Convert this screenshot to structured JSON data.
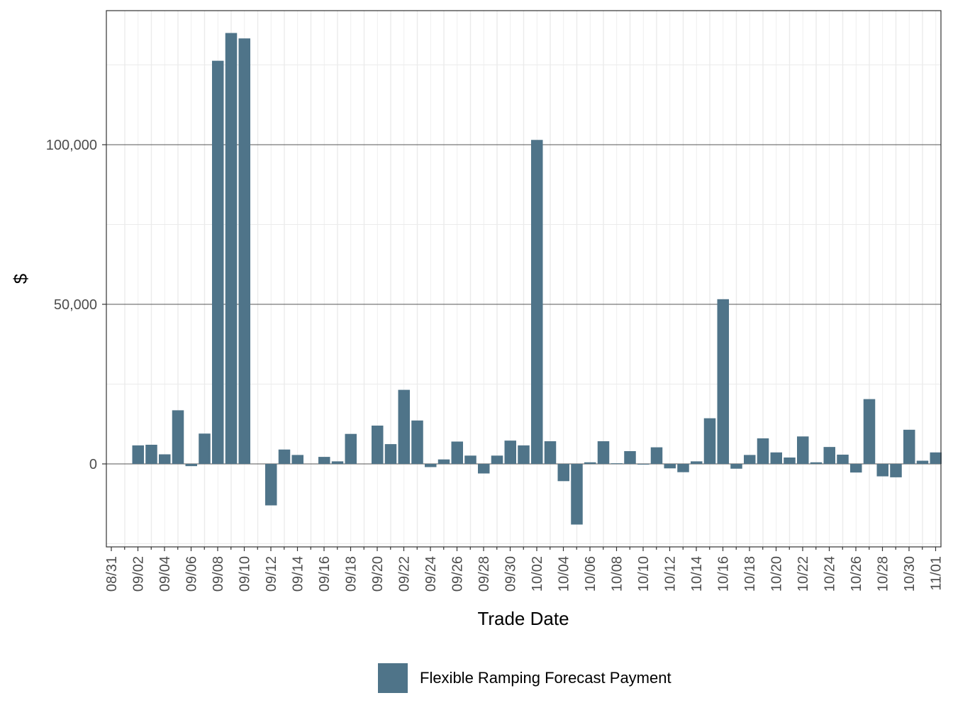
{
  "chart_data": {
    "type": "bar",
    "xlabel": "Trade Date",
    "ylabel": "$",
    "ylim": [
      -26000,
      142000
    ],
    "y_ticks": [
      0,
      50000,
      100000
    ],
    "y_tick_labels": [
      "0",
      "50,000",
      "100,000"
    ],
    "grid": true,
    "legend_position": "bottom",
    "bar_color": "#4f7489",
    "dates": [
      "08/31",
      "09/01",
      "09/02",
      "09/03",
      "09/04",
      "09/05",
      "09/06",
      "09/07",
      "09/08",
      "09/09",
      "09/10",
      "09/11",
      "09/12",
      "09/13",
      "09/14",
      "09/15",
      "09/16",
      "09/17",
      "09/18",
      "09/19",
      "09/20",
      "09/21",
      "09/22",
      "09/23",
      "09/24",
      "09/25",
      "09/26",
      "09/27",
      "09/28",
      "09/29",
      "09/30",
      "10/01",
      "10/02",
      "10/03",
      "10/04",
      "10/05",
      "10/06",
      "10/07",
      "10/08",
      "10/09",
      "10/10",
      "10/11",
      "10/12",
      "10/13",
      "10/14",
      "10/15",
      "10/16",
      "10/17",
      "10/18",
      "10/19",
      "10/20",
      "10/21",
      "10/22",
      "10/23",
      "10/24",
      "10/25",
      "10/26",
      "10/27",
      "10/28",
      "10/29",
      "10/30",
      "10/31",
      "11/01"
    ],
    "x_tick_labels": [
      "08/31",
      "09/02",
      "09/04",
      "09/06",
      "09/08",
      "09/10",
      "09/12",
      "09/14",
      "09/16",
      "09/18",
      "09/20",
      "09/22",
      "09/24",
      "09/26",
      "09/28",
      "09/30",
      "10/02",
      "10/04",
      "10/06",
      "10/08",
      "10/10",
      "10/12",
      "10/14",
      "10/16",
      "10/18",
      "10/20",
      "10/22",
      "10/24",
      "10/26",
      "10/28",
      "10/30",
      "11/01"
    ],
    "series": [
      {
        "name": "Flexible Ramping Forecast Payment",
        "color": "#4f7489",
        "values": [
          null,
          5800,
          6000,
          3000,
          16800,
          -700,
          9500,
          126300,
          135000,
          133300,
          null,
          -13000,
          4500,
          2800,
          null,
          2200,
          800,
          9400,
          null,
          12000,
          6200,
          23200,
          13600,
          -1000,
          1400,
          7000,
          2600,
          -3000,
          2600,
          7300,
          5800,
          101500,
          7100,
          -5400,
          -19000,
          500,
          7100,
          200,
          4000,
          -200,
          5200,
          -1400,
          -2600,
          800,
          14300,
          51600,
          -1500,
          2800,
          8000,
          3600,
          2000,
          8600,
          500,
          5300,
          2900,
          -2700,
          20300,
          -3900,
          -4200,
          10700,
          1000,
          3600,
          null
        ]
      }
    ]
  }
}
